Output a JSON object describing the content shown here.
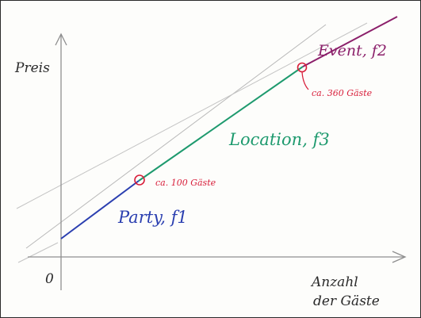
{
  "axes": {
    "y_label": "Preis",
    "x_label_line1": "Anzahl",
    "x_label_line2": "der Gäste",
    "origin_label": "0"
  },
  "segments": [
    {
      "label": "Party, f1",
      "color": "#2b3fb0"
    },
    {
      "label": "Location, f3",
      "color": "#1e9a6e"
    },
    {
      "label": "Event, f2",
      "color": "#8b1f6a"
    }
  ],
  "breakpoints": [
    {
      "label": "ca. 100 Gäste",
      "color": "#d81e3a"
    },
    {
      "label": "ca. 360 Gäste",
      "color": "#d81e3a"
    }
  ]
}
